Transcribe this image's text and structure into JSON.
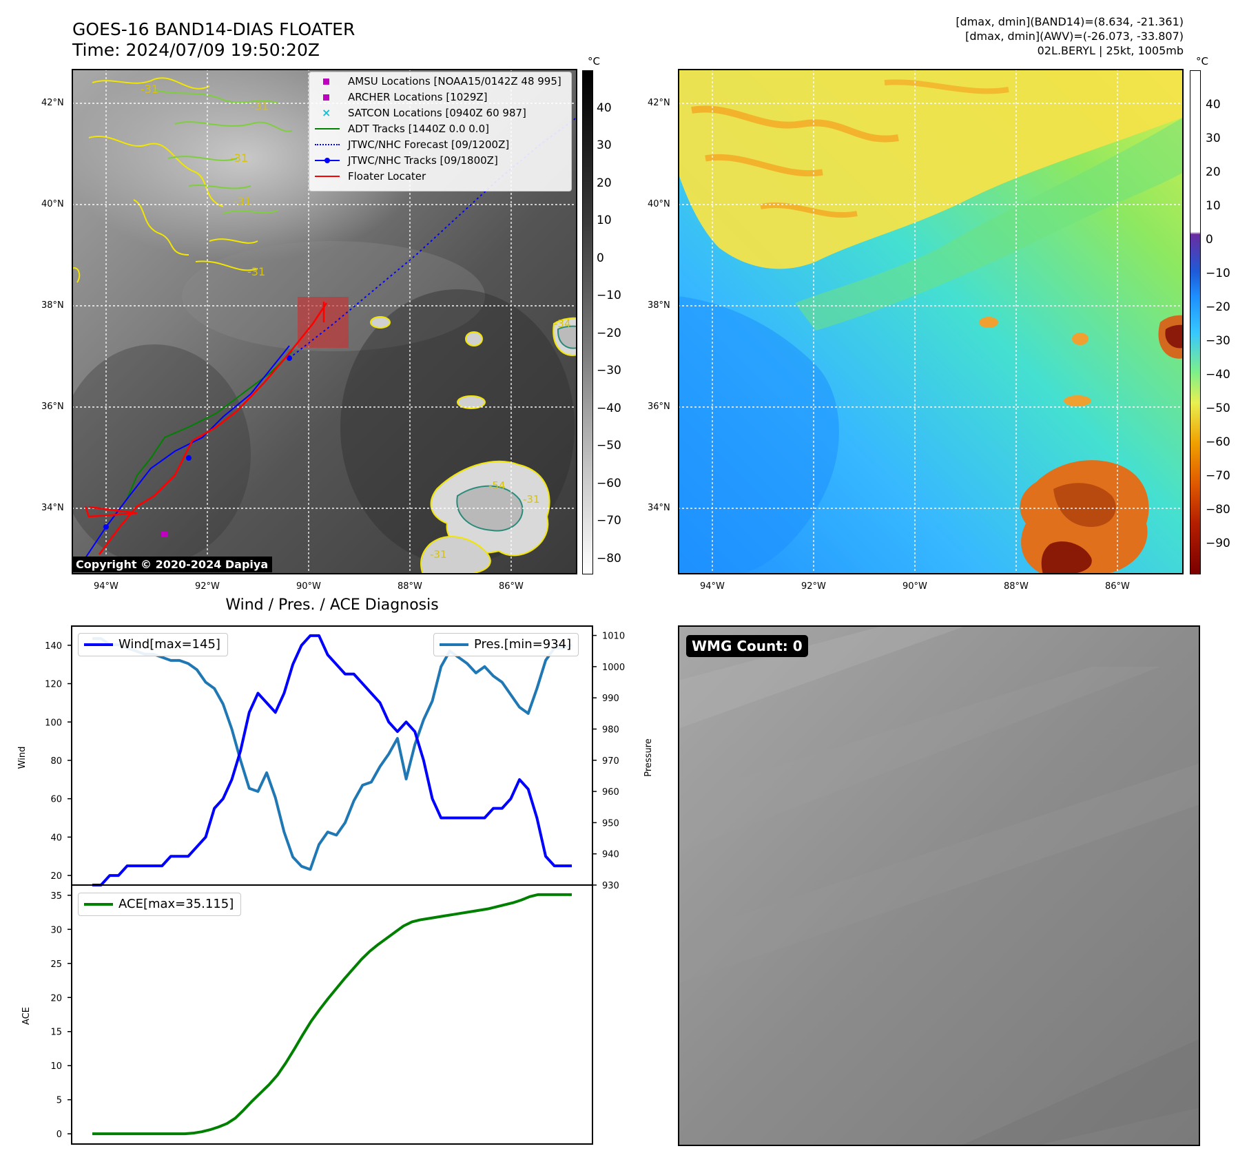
{
  "header": {
    "title_line1": "GOES-16 BAND14-DIAS FLOATER",
    "title_line2": "Time: 2024/07/09 19:50:20Z",
    "info_line1": "[dmax, dmin](BAND14)=(8.634, -21.361)",
    "info_line2": "[dmax, dmin](AWV)=(-26.073, -33.807)",
    "info_line3": "02L.BERYL | 25kt, 1005mb"
  },
  "map": {
    "lon_ticks": [
      "94°W",
      "92°W",
      "90°W",
      "88°W",
      "86°W"
    ],
    "lat_ticks": [
      "42°N",
      "40°N",
      "38°N",
      "36°N",
      "34°N"
    ],
    "copyright": "Copyright © 2020-2024 Dapiya",
    "contour_labels": [
      "-31",
      "-31",
      "-31",
      "-31",
      "-31",
      "-34",
      "-54",
      "-31",
      "-31"
    ],
    "legend": [
      {
        "label": "AMSU Locations [NOAA15/0142Z 48 995]",
        "color": "#c000c0",
        "marker": "square"
      },
      {
        "label": "ARCHER Locations [1029Z]",
        "color": "#c000c0",
        "marker": "square"
      },
      {
        "label": "SATCON Locations [0940Z 60 987]",
        "color": "#17becf",
        "marker": "x"
      },
      {
        "label": "ADT Tracks [1440Z 0.0 0.0]",
        "color": "#008000",
        "marker": "line"
      },
      {
        "label": "JTWC/NHC Forecast [09/1200Z]",
        "color": "#0000ff",
        "marker": "dotted"
      },
      {
        "label": "JTWC/NHC Tracks [09/1800Z]",
        "color": "#0000ff",
        "marker": "line-dot"
      },
      {
        "label": "Floater Locater",
        "color": "#ff0000",
        "marker": "line"
      }
    ]
  },
  "colorbar_gray": {
    "unit": "°C",
    "ticks": [
      "40",
      "30",
      "20",
      "10",
      "0",
      "−10",
      "−20",
      "−30",
      "−40",
      "−50",
      "−60",
      "−70",
      "−80"
    ]
  },
  "colorbar_color": {
    "unit": "°C",
    "ticks": [
      "40",
      "30",
      "20",
      "10",
      "0",
      "−10",
      "−20",
      "−30",
      "−40",
      "−50",
      "−60",
      "−70",
      "−80",
      "−90"
    ]
  },
  "diagnosis": {
    "title": "Wind / Pres. / ACE Diagnosis",
    "wind_ylabel": "Wind",
    "pres_ylabel": "Pressure",
    "ace_ylabel": "ACE",
    "wind_legend": "Wind[max=145]",
    "pres_legend": "Pres.[min=934]",
    "ace_legend": "ACE[max=35.115]"
  },
  "wmg": {
    "label": "WMG Count: 0"
  },
  "chart_data": [
    {
      "type": "line",
      "title": "Wind / Pres. / ACE Diagnosis",
      "ylabel": "Wind",
      "y2label": "Pressure",
      "ylim": [
        15,
        150
      ],
      "y2lim": [
        930,
        1013
      ],
      "series": [
        {
          "name": "Wind[max=145]",
          "color": "#0000ff",
          "values": [
            15,
            15,
            20,
            20,
            25,
            25,
            25,
            25,
            25,
            30,
            30,
            30,
            35,
            40,
            55,
            60,
            70,
            85,
            105,
            115,
            110,
            105,
            115,
            130,
            140,
            145,
            145,
            135,
            130,
            125,
            125,
            120,
            115,
            110,
            100,
            95,
            100,
            95,
            80,
            60,
            50,
            50,
            50,
            50,
            50,
            50,
            55,
            55,
            60,
            70,
            65,
            50,
            30,
            25,
            25,
            25
          ]
        },
        {
          "name": "Pres.[min=934]",
          "color": "#1f77b4",
          "values": [
            1009,
            1009,
            1007,
            1007,
            1006,
            1005,
            1004,
            1004,
            1003,
            1002,
            1002,
            1001,
            999,
            995,
            993,
            988,
            980,
            970,
            961,
            960,
            966,
            958,
            947,
            939,
            936,
            935,
            943,
            947,
            946,
            950,
            957,
            962,
            963,
            968,
            972,
            977,
            964,
            975,
            983,
            989,
            1000,
            1005,
            1003,
            1001,
            998,
            1000,
            997,
            995,
            991,
            987,
            985,
            993,
            1002,
            1006,
            1006,
            1007
          ]
        }
      ]
    },
    {
      "type": "line",
      "ylabel": "ACE",
      "ylim": [
        -1.5,
        36.5
      ],
      "series": [
        {
          "name": "ACE[max=35.115]",
          "color": "#008000",
          "values": [
            0,
            0,
            0,
            0,
            0,
            0,
            0,
            0,
            0,
            0,
            0,
            0,
            0.1,
            0.3,
            0.6,
            1.0,
            1.5,
            2.3,
            3.5,
            4.8,
            6.0,
            7.2,
            8.6,
            10.4,
            12.4,
            14.5,
            16.5,
            18.2,
            19.8,
            21.3,
            22.8,
            24.2,
            25.6,
            26.8,
            27.8,
            28.7,
            29.6,
            30.5,
            31.1,
            31.4,
            31.6,
            31.8,
            32.0,
            32.2,
            32.4,
            32.6,
            32.8,
            33.0,
            33.3,
            33.6,
            33.9,
            34.3,
            34.8,
            35.1,
            35.1,
            35.1,
            35.1,
            35.1
          ]
        }
      ]
    }
  ]
}
